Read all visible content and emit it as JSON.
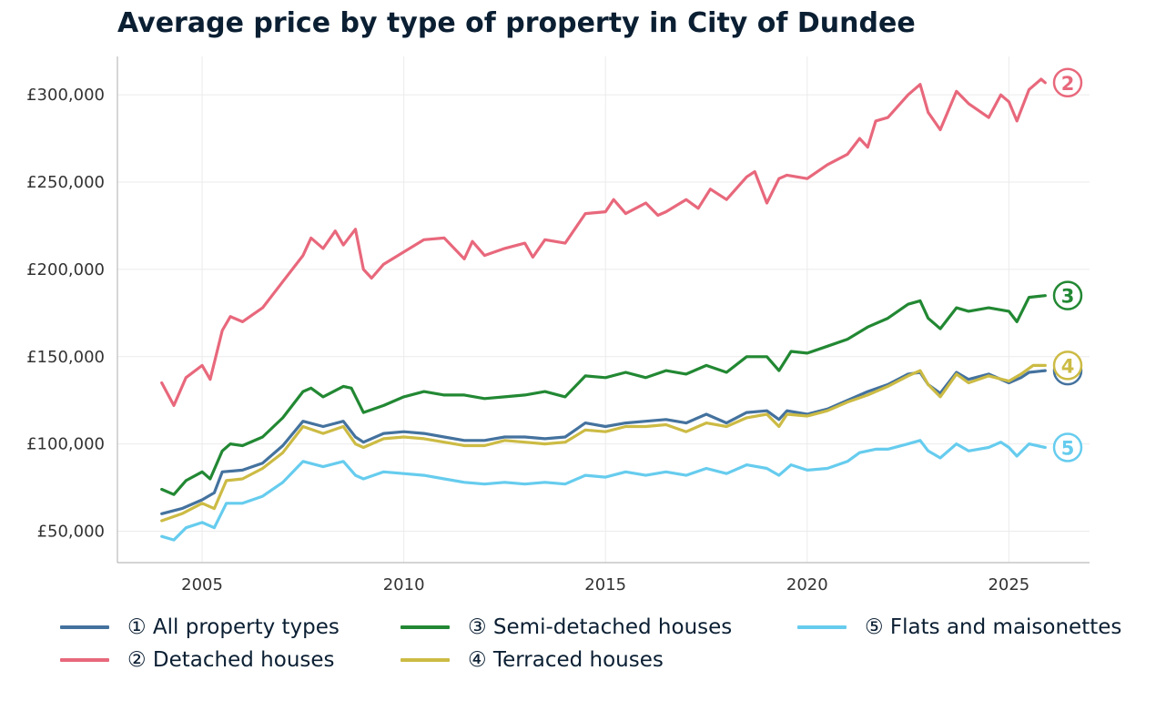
{
  "chart_data": {
    "type": "line",
    "title": "Average price by type of property in City of Dundee",
    "xlabel": "",
    "ylabel": "",
    "xlim": [
      2002.9,
      2027.0
    ],
    "ylim": [
      32000,
      322000
    ],
    "x_ticks": [
      2005,
      2010,
      2015,
      2020,
      2025
    ],
    "y_ticks": [
      50000,
      100000,
      150000,
      200000,
      250000,
      300000
    ],
    "y_tick_labels": [
      "£50,000",
      "£100,000",
      "£150,000",
      "£200,000",
      "£250,000",
      "£300,000"
    ],
    "grid": true,
    "legend_position": "bottom",
    "series": [
      {
        "name": "① All property types",
        "marker": "1",
        "color": "#44729e",
        "points": [
          [
            2004.0,
            60000
          ],
          [
            2004.5,
            63000
          ],
          [
            2005.0,
            68000
          ],
          [
            2005.3,
            72000
          ],
          [
            2005.5,
            84000
          ],
          [
            2006.0,
            85000
          ],
          [
            2006.5,
            89000
          ],
          [
            2007.0,
            99000
          ],
          [
            2007.5,
            113000
          ],
          [
            2008.0,
            110000
          ],
          [
            2008.5,
            113000
          ],
          [
            2008.8,
            104000
          ],
          [
            2009.0,
            101000
          ],
          [
            2009.5,
            106000
          ],
          [
            2010.0,
            107000
          ],
          [
            2010.5,
            106000
          ],
          [
            2011.0,
            104000
          ],
          [
            2011.5,
            102000
          ],
          [
            2012.0,
            102000
          ],
          [
            2012.5,
            104000
          ],
          [
            2013.0,
            104000
          ],
          [
            2013.5,
            103000
          ],
          [
            2014.0,
            104000
          ],
          [
            2014.5,
            112000
          ],
          [
            2015.0,
            110000
          ],
          [
            2015.5,
            112000
          ],
          [
            2016.0,
            113000
          ],
          [
            2016.5,
            114000
          ],
          [
            2017.0,
            112000
          ],
          [
            2017.5,
            117000
          ],
          [
            2018.0,
            112000
          ],
          [
            2018.5,
            118000
          ],
          [
            2019.0,
            119000
          ],
          [
            2019.3,
            114000
          ],
          [
            2019.5,
            119000
          ],
          [
            2020.0,
            117000
          ],
          [
            2020.5,
            120000
          ],
          [
            2021.0,
            125000
          ],
          [
            2021.5,
            130000
          ],
          [
            2022.0,
            134000
          ],
          [
            2022.5,
            140000
          ],
          [
            2022.8,
            141000
          ],
          [
            2023.0,
            134000
          ],
          [
            2023.3,
            129000
          ],
          [
            2023.7,
            141000
          ],
          [
            2024.0,
            137000
          ],
          [
            2024.5,
            140000
          ],
          [
            2025.0,
            135000
          ],
          [
            2025.3,
            138000
          ],
          [
            2025.5,
            141000
          ],
          [
            2025.9,
            142000
          ]
        ]
      },
      {
        "name": "② Detached houses",
        "marker": "2",
        "color": "#e8687c",
        "points": [
          [
            2004.0,
            135000
          ],
          [
            2004.3,
            122000
          ],
          [
            2004.6,
            138000
          ],
          [
            2005.0,
            145000
          ],
          [
            2005.2,
            137000
          ],
          [
            2005.5,
            165000
          ],
          [
            2005.7,
            173000
          ],
          [
            2006.0,
            170000
          ],
          [
            2006.5,
            178000
          ],
          [
            2007.0,
            193000
          ],
          [
            2007.5,
            208000
          ],
          [
            2007.7,
            218000
          ],
          [
            2008.0,
            212000
          ],
          [
            2008.3,
            222000
          ],
          [
            2008.5,
            214000
          ],
          [
            2008.8,
            223000
          ],
          [
            2009.0,
            200000
          ],
          [
            2009.2,
            195000
          ],
          [
            2009.5,
            203000
          ],
          [
            2010.0,
            210000
          ],
          [
            2010.5,
            217000
          ],
          [
            2011.0,
            218000
          ],
          [
            2011.5,
            206000
          ],
          [
            2011.7,
            216000
          ],
          [
            2012.0,
            208000
          ],
          [
            2012.5,
            212000
          ],
          [
            2013.0,
            215000
          ],
          [
            2013.2,
            207000
          ],
          [
            2013.5,
            217000
          ],
          [
            2014.0,
            215000
          ],
          [
            2014.5,
            232000
          ],
          [
            2015.0,
            233000
          ],
          [
            2015.2,
            240000
          ],
          [
            2015.5,
            232000
          ],
          [
            2016.0,
            238000
          ],
          [
            2016.3,
            231000
          ],
          [
            2016.5,
            233000
          ],
          [
            2017.0,
            240000
          ],
          [
            2017.3,
            235000
          ],
          [
            2017.6,
            246000
          ],
          [
            2018.0,
            240000
          ],
          [
            2018.5,
            253000
          ],
          [
            2018.7,
            256000
          ],
          [
            2019.0,
            238000
          ],
          [
            2019.3,
            252000
          ],
          [
            2019.5,
            254000
          ],
          [
            2020.0,
            252000
          ],
          [
            2020.5,
            260000
          ],
          [
            2021.0,
            266000
          ],
          [
            2021.3,
            275000
          ],
          [
            2021.5,
            270000
          ],
          [
            2021.7,
            285000
          ],
          [
            2022.0,
            287000
          ],
          [
            2022.5,
            300000
          ],
          [
            2022.8,
            306000
          ],
          [
            2023.0,
            290000
          ],
          [
            2023.3,
            280000
          ],
          [
            2023.7,
            302000
          ],
          [
            2024.0,
            295000
          ],
          [
            2024.5,
            287000
          ],
          [
            2024.8,
            300000
          ],
          [
            2025.0,
            296000
          ],
          [
            2025.2,
            285000
          ],
          [
            2025.5,
            303000
          ],
          [
            2025.8,
            309000
          ],
          [
            2025.9,
            307000
          ]
        ]
      },
      {
        "name": "③ Semi-detached houses",
        "marker": "3",
        "color": "#228833",
        "points": [
          [
            2004.0,
            74000
          ],
          [
            2004.3,
            71000
          ],
          [
            2004.6,
            79000
          ],
          [
            2005.0,
            84000
          ],
          [
            2005.2,
            80000
          ],
          [
            2005.5,
            96000
          ],
          [
            2005.7,
            100000
          ],
          [
            2006.0,
            99000
          ],
          [
            2006.5,
            104000
          ],
          [
            2007.0,
            115000
          ],
          [
            2007.5,
            130000
          ],
          [
            2007.7,
            132000
          ],
          [
            2008.0,
            127000
          ],
          [
            2008.5,
            133000
          ],
          [
            2008.7,
            132000
          ],
          [
            2009.0,
            118000
          ],
          [
            2009.5,
            122000
          ],
          [
            2010.0,
            127000
          ],
          [
            2010.5,
            130000
          ],
          [
            2011.0,
            128000
          ],
          [
            2011.5,
            128000
          ],
          [
            2012.0,
            126000
          ],
          [
            2012.5,
            127000
          ],
          [
            2013.0,
            128000
          ],
          [
            2013.5,
            130000
          ],
          [
            2014.0,
            127000
          ],
          [
            2014.5,
            139000
          ],
          [
            2015.0,
            138000
          ],
          [
            2015.5,
            141000
          ],
          [
            2016.0,
            138000
          ],
          [
            2016.5,
            142000
          ],
          [
            2017.0,
            140000
          ],
          [
            2017.5,
            145000
          ],
          [
            2018.0,
            141000
          ],
          [
            2018.5,
            150000
          ],
          [
            2019.0,
            150000
          ],
          [
            2019.3,
            142000
          ],
          [
            2019.6,
            153000
          ],
          [
            2020.0,
            152000
          ],
          [
            2020.5,
            156000
          ],
          [
            2021.0,
            160000
          ],
          [
            2021.5,
            167000
          ],
          [
            2022.0,
            172000
          ],
          [
            2022.5,
            180000
          ],
          [
            2022.8,
            182000
          ],
          [
            2023.0,
            172000
          ],
          [
            2023.3,
            166000
          ],
          [
            2023.7,
            178000
          ],
          [
            2024.0,
            176000
          ],
          [
            2024.5,
            178000
          ],
          [
            2025.0,
            176000
          ],
          [
            2025.2,
            170000
          ],
          [
            2025.5,
            184000
          ],
          [
            2025.9,
            185000
          ]
        ]
      },
      {
        "name": "④ Terraced houses",
        "marker": "4",
        "color": "#ccbb44",
        "points": [
          [
            2004.0,
            56000
          ],
          [
            2004.5,
            60000
          ],
          [
            2005.0,
            66000
          ],
          [
            2005.3,
            63000
          ],
          [
            2005.6,
            79000
          ],
          [
            2006.0,
            80000
          ],
          [
            2006.5,
            86000
          ],
          [
            2007.0,
            95000
          ],
          [
            2007.5,
            110000
          ],
          [
            2008.0,
            106000
          ],
          [
            2008.5,
            110000
          ],
          [
            2008.8,
            100000
          ],
          [
            2009.0,
            98000
          ],
          [
            2009.5,
            103000
          ],
          [
            2010.0,
            104000
          ],
          [
            2010.5,
            103000
          ],
          [
            2011.0,
            101000
          ],
          [
            2011.5,
            99000
          ],
          [
            2012.0,
            99000
          ],
          [
            2012.5,
            102000
          ],
          [
            2013.0,
            101000
          ],
          [
            2013.5,
            100000
          ],
          [
            2014.0,
            101000
          ],
          [
            2014.5,
            108000
          ],
          [
            2015.0,
            107000
          ],
          [
            2015.5,
            110000
          ],
          [
            2016.0,
            110000
          ],
          [
            2016.5,
            111000
          ],
          [
            2017.0,
            107000
          ],
          [
            2017.5,
            112000
          ],
          [
            2018.0,
            110000
          ],
          [
            2018.5,
            115000
          ],
          [
            2019.0,
            117000
          ],
          [
            2019.3,
            110000
          ],
          [
            2019.5,
            117000
          ],
          [
            2020.0,
            116000
          ],
          [
            2020.5,
            119000
          ],
          [
            2021.0,
            124000
          ],
          [
            2021.5,
            128000
          ],
          [
            2022.0,
            133000
          ],
          [
            2022.5,
            139000
          ],
          [
            2022.8,
            142000
          ],
          [
            2023.0,
            134000
          ],
          [
            2023.3,
            127000
          ],
          [
            2023.7,
            140000
          ],
          [
            2024.0,
            135000
          ],
          [
            2024.5,
            139000
          ],
          [
            2025.0,
            136000
          ],
          [
            2025.3,
            140000
          ],
          [
            2025.6,
            145000
          ],
          [
            2025.9,
            145000
          ]
        ]
      },
      {
        "name": "⑤ Flats and maisonettes",
        "marker": "5",
        "color": "#66ccee",
        "points": [
          [
            2004.0,
            47000
          ],
          [
            2004.3,
            45000
          ],
          [
            2004.6,
            52000
          ],
          [
            2005.0,
            55000
          ],
          [
            2005.3,
            52000
          ],
          [
            2005.6,
            66000
          ],
          [
            2006.0,
            66000
          ],
          [
            2006.5,
            70000
          ],
          [
            2007.0,
            78000
          ],
          [
            2007.5,
            90000
          ],
          [
            2008.0,
            87000
          ],
          [
            2008.5,
            90000
          ],
          [
            2008.8,
            82000
          ],
          [
            2009.0,
            80000
          ],
          [
            2009.5,
            84000
          ],
          [
            2010.0,
            83000
          ],
          [
            2010.5,
            82000
          ],
          [
            2011.0,
            80000
          ],
          [
            2011.5,
            78000
          ],
          [
            2012.0,
            77000
          ],
          [
            2012.5,
            78000
          ],
          [
            2013.0,
            77000
          ],
          [
            2013.5,
            78000
          ],
          [
            2014.0,
            77000
          ],
          [
            2014.5,
            82000
          ],
          [
            2015.0,
            81000
          ],
          [
            2015.5,
            84000
          ],
          [
            2016.0,
            82000
          ],
          [
            2016.5,
            84000
          ],
          [
            2017.0,
            82000
          ],
          [
            2017.5,
            86000
          ],
          [
            2018.0,
            83000
          ],
          [
            2018.5,
            88000
          ],
          [
            2019.0,
            86000
          ],
          [
            2019.3,
            82000
          ],
          [
            2019.6,
            88000
          ],
          [
            2020.0,
            85000
          ],
          [
            2020.5,
            86000
          ],
          [
            2021.0,
            90000
          ],
          [
            2021.3,
            95000
          ],
          [
            2021.7,
            97000
          ],
          [
            2022.0,
            97000
          ],
          [
            2022.5,
            100000
          ],
          [
            2022.8,
            102000
          ],
          [
            2023.0,
            96000
          ],
          [
            2023.3,
            92000
          ],
          [
            2023.7,
            100000
          ],
          [
            2024.0,
            96000
          ],
          [
            2024.5,
            98000
          ],
          [
            2024.8,
            101000
          ],
          [
            2025.0,
            98000
          ],
          [
            2025.2,
            93000
          ],
          [
            2025.5,
            100000
          ],
          [
            2025.9,
            98000
          ]
        ]
      }
    ]
  }
}
